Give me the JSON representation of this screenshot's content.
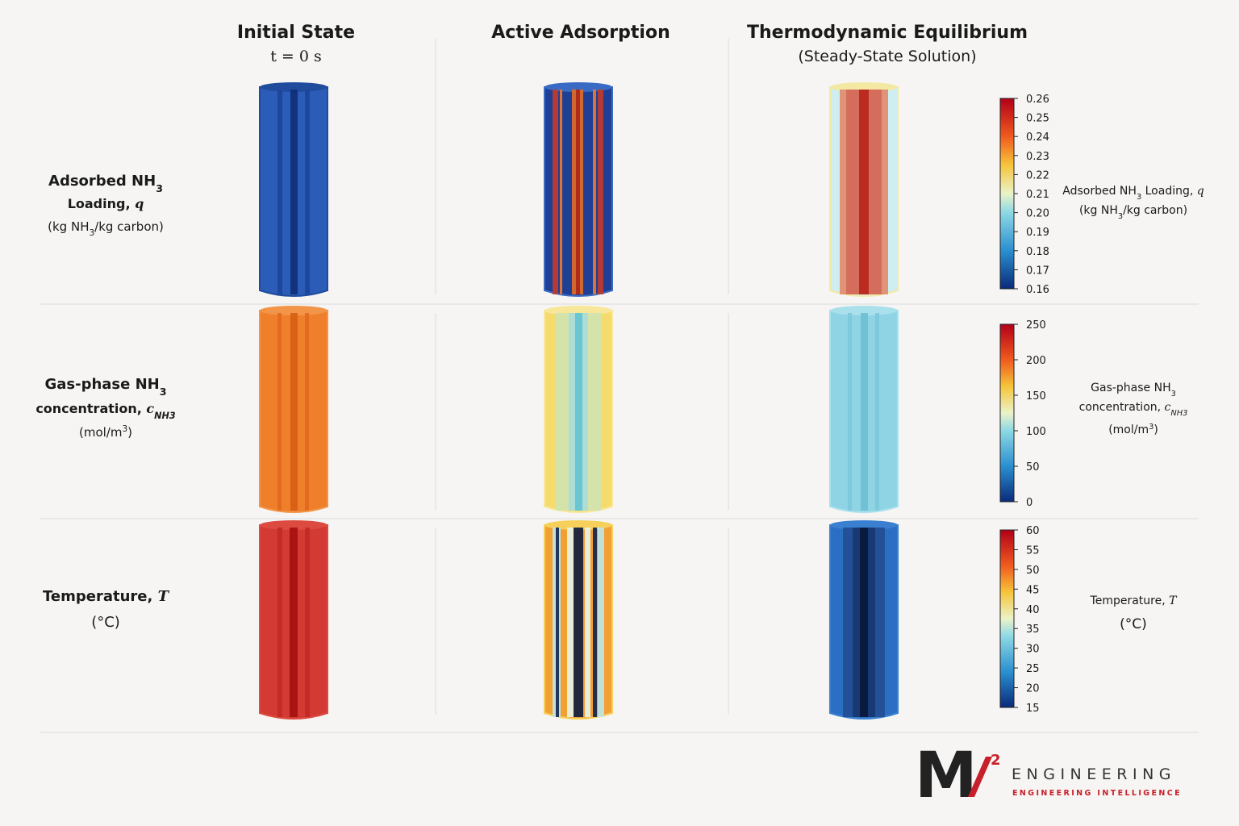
{
  "columns": [
    {
      "title": "Initial State",
      "subtitle": "t = 0 s"
    },
    {
      "title": "Active Adsorption"
    },
    {
      "title": "Thermodynamic Equilibrium",
      "subtitle": "(Steady-State Solution)"
    }
  ],
  "rows": [
    {
      "label": [
        [
          {
            "text": "Adsorbed NH"
          },
          {
            "text": "3",
            "style": "sub"
          }
        ],
        [
          {
            "text": "Loading, "
          },
          {
            "text": "q",
            "style": "italic"
          }
        ]
      ],
      "units": [
        {
          "text": "(kg NH"
        },
        {
          "text": "3",
          "style": "sub"
        },
        {
          "text": "/kg carbon)"
        }
      ],
      "colorbar": [
        "0.26",
        "0.25",
        "0.24",
        "0.23",
        "0.22",
        "0.21",
        "0.20",
        "0.19",
        "0.18",
        "0.17",
        "0.16"
      ],
      "side_label": [
        [
          {
            "text": "Adsorbed NH"
          },
          {
            "text": "3",
            "style": "sub"
          },
          {
            "text": " Loading, "
          },
          {
            "text": "q",
            "style": "italic"
          }
        ]
      ],
      "side_units": [
        {
          "text": "(kg NH"
        },
        {
          "text": "3",
          "style": "sub"
        },
        {
          "text": "/kg carbon)"
        }
      ]
    },
    {
      "label": [
        [
          {
            "text": "Gas-phase NH"
          },
          {
            "text": "3",
            "style": "sub"
          }
        ],
        [
          {
            "text": "concentration, "
          },
          {
            "text": "c",
            "style": "italic"
          },
          {
            "text": "NH3",
            "style": "sub"
          }
        ]
      ],
      "units": [
        {
          "text": "(mol/m"
        },
        {
          "text": "3",
          "style": "sup"
        },
        {
          "text": ")"
        }
      ],
      "colorbar": [
        "250",
        "200",
        "150",
        "100",
        "50",
        "0"
      ],
      "side_label": [
        [
          {
            "text": "Gas-phase NH"
          },
          {
            "text": "3",
            "style": "sub"
          }
        ],
        [
          {
            "text": "concentration, "
          },
          {
            "text": "c",
            "style": "italic"
          },
          {
            "text": "NH3",
            "style": "sub"
          }
        ]
      ],
      "side_units": [
        {
          "text": "(mol/m"
        },
        {
          "text": "3",
          "style": "sup"
        },
        {
          "text": ")"
        }
      ]
    },
    {
      "label": [
        [
          {
            "text": "Temperature, "
          },
          {
            "text": "T",
            "style": "italic"
          }
        ]
      ],
      "units": [
        {
          "text": "(°C)"
        }
      ],
      "colorbar": [
        "60",
        "55",
        "50",
        "45",
        "40",
        "35",
        "30",
        "25",
        "20",
        "15"
      ],
      "side_label": [
        [
          {
            "text": "Temperature, "
          },
          {
            "text": "T",
            "style": "italic"
          }
        ]
      ],
      "side_units": [
        {
          "text": "(°C)"
        }
      ]
    }
  ],
  "logo": {
    "mark": "M",
    "superscript": "2",
    "name": "ENGINEERING",
    "tagline": "ENGINEERING INTELLIGENCE"
  }
}
